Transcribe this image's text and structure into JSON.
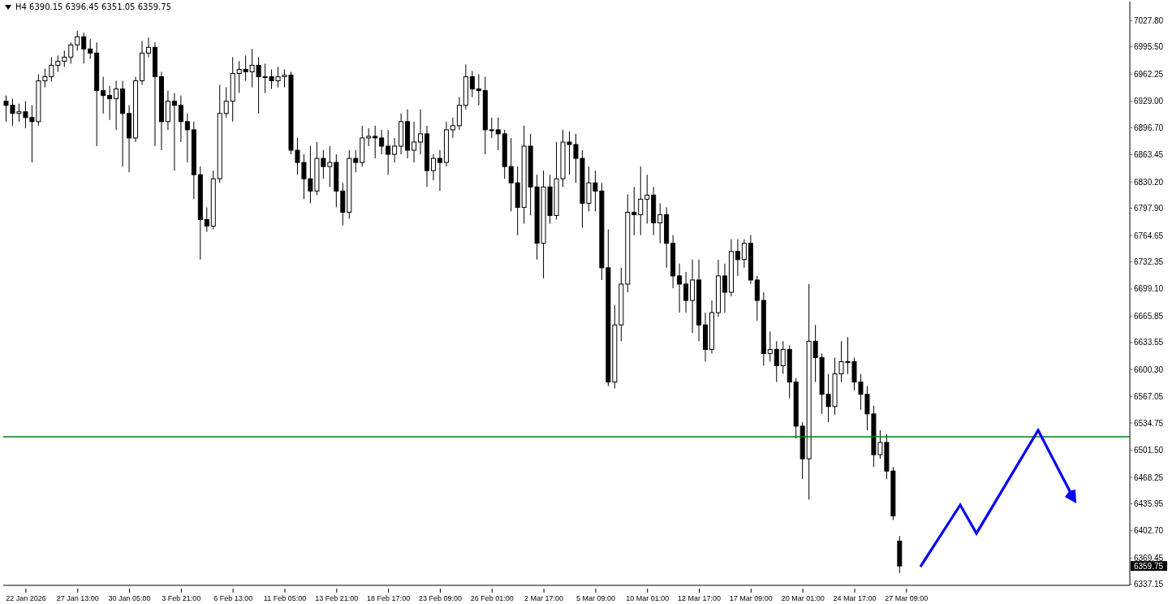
{
  "chart_data": {
    "type": "candlestick",
    "title": "H4 6390.15 6396.45 6351.05 6359.75",
    "color": "#000000",
    "categories": [
      null,
      null,
      null,
      "22 Jan 2026",
      null,
      null,
      null,
      null,
      null,
      null,
      null,
      "27 Jan 13:00",
      null,
      null,
      null,
      null,
      null,
      null,
      null,
      "30 Jan 05:00",
      null,
      null,
      null,
      null,
      null,
      null,
      null,
      "3 Feb 21:00",
      null,
      null,
      null,
      null,
      null,
      null,
      null,
      "6 Feb 13:00",
      null,
      null,
      null,
      null,
      null,
      null,
      null,
      "11 Feb 05:00",
      null,
      null,
      null,
      null,
      null,
      null,
      null,
      "13 Feb 21:00",
      null,
      null,
      null,
      null,
      null,
      null,
      null,
      "18 Feb 17:00",
      null,
      null,
      null,
      null,
      null,
      null,
      null,
      "23 Feb 09:00",
      null,
      null,
      null,
      null,
      null,
      null,
      null,
      "26 Feb 01:00",
      null,
      null,
      null,
      null,
      null,
      null,
      null,
      "2 Mar 17:00",
      null,
      null,
      null,
      null,
      null,
      null,
      null,
      "5 Mar 09:00",
      null,
      null,
      null,
      null,
      null,
      null,
      null,
      "10 Mar 01:00",
      null,
      null,
      null,
      null,
      null,
      null,
      null,
      "12 Mar 17:00",
      null,
      null,
      null,
      null,
      null,
      null,
      null,
      "17 Mar 09:00",
      null,
      null,
      null,
      null,
      null,
      null,
      null,
      "20 Mar 01:00",
      null,
      null,
      null,
      null,
      null,
      null,
      null,
      "24 Mar 17:00",
      null,
      null,
      null,
      null,
      null,
      null,
      null,
      "27 Mar 09:00",
      null,
      null,
      null,
      null,
      null,
      null,
      null,
      null,
      null,
      null,
      null,
      null,
      null,
      null,
      null,
      null,
      null,
      null,
      null,
      null,
      null,
      null,
      null,
      null,
      null,
      null,
      null,
      null,
      null,
      null,
      null,
      null,
      null,
      null
    ],
    "ohlc": [
      [
        6929,
        6936,
        6904,
        6924
      ],
      [
        6924,
        6932,
        6899,
        6914
      ],
      [
        6914,
        6926,
        6904,
        6916
      ],
      [
        6916,
        6929,
        6896,
        6909
      ],
      [
        6909,
        6924,
        6854,
        6904
      ],
      [
        6904,
        6962,
        6899,
        6954
      ],
      [
        6954,
        6969,
        6946,
        6959
      ],
      [
        6959,
        6983,
        6953,
        6973
      ],
      [
        6973,
        6985,
        6965,
        6978
      ],
      [
        6978,
        6991,
        6971,
        6983
      ],
      [
        6983,
        7001,
        6975,
        6998
      ],
      [
        6998,
        7015,
        6991,
        7008
      ],
      [
        7008,
        7013,
        6975,
        6993
      ],
      [
        6993,
        7005,
        6981,
        6988
      ],
      [
        6988,
        7001,
        6874,
        6942
      ],
      [
        6942,
        6959,
        6914,
        6936
      ],
      [
        6936,
        6948,
        6906,
        6932
      ],
      [
        6932,
        6954,
        6894,
        6944
      ],
      [
        6944,
        6954,
        6849,
        6914
      ],
      [
        6914,
        6924,
        6842,
        6884
      ],
      [
        6884,
        6959,
        6879,
        6954
      ],
      [
        6954,
        7003,
        6949,
        6988
      ],
      [
        6988,
        7007,
        6983,
        6995
      ],
      [
        6995,
        7001,
        6874,
        6959
      ],
      [
        6959,
        6965,
        6869,
        6904
      ],
      [
        6904,
        6942,
        6894,
        6929
      ],
      [
        6929,
        6939,
        6844,
        6924
      ],
      [
        6924,
        6936,
        6879,
        6904
      ],
      [
        6904,
        6914,
        6854,
        6894
      ],
      [
        6894,
        6904,
        6809,
        6839
      ],
      [
        6839,
        6849,
        6735,
        6784
      ],
      [
        6784,
        6799,
        6769,
        6776
      ],
      [
        6776,
        6844,
        6772,
        6834
      ],
      [
        6834,
        6949,
        6829,
        6914
      ],
      [
        6914,
        6946,
        6909,
        6929
      ],
      [
        6929,
        6983,
        6904,
        6963
      ],
      [
        6963,
        6978,
        6939,
        6968
      ],
      [
        6968,
        6985,
        6954,
        6965
      ],
      [
        6965,
        6993,
        6946,
        6973
      ],
      [
        6973,
        6983,
        6914,
        6959
      ],
      [
        6959,
        6975,
        6939,
        6959
      ],
      [
        6959,
        6968,
        6944,
        6954
      ],
      [
        6954,
        6971,
        6946,
        6959
      ],
      [
        6959,
        6968,
        6946,
        6961
      ],
      [
        6961,
        6965,
        6864,
        6869
      ],
      [
        6869,
        6884,
        6839,
        6854
      ],
      [
        6854,
        6864,
        6809,
        6834
      ],
      [
        6834,
        6874,
        6804,
        6819
      ],
      [
        6819,
        6879,
        6814,
        6859
      ],
      [
        6859,
        6869,
        6834,
        6849
      ],
      [
        6849,
        6874,
        6824,
        6854
      ],
      [
        6854,
        6864,
        6799,
        6819
      ],
      [
        6819,
        6829,
        6777,
        6793
      ],
      [
        6793,
        6869,
        6785,
        6859
      ],
      [
        6859,
        6869,
        6842,
        6854
      ],
      [
        6854,
        6899,
        6849,
        6884
      ],
      [
        6884,
        6896,
        6874,
        6886
      ],
      [
        6886,
        6899,
        6859,
        6884
      ],
      [
        6884,
        6894,
        6864,
        6874
      ],
      [
        6874,
        6894,
        6839,
        6864
      ],
      [
        6864,
        6884,
        6854,
        6874
      ],
      [
        6874,
        6914,
        6864,
        6904
      ],
      [
        6904,
        6919,
        6859,
        6869
      ],
      [
        6869,
        6904,
        6854,
        6879
      ],
      [
        6879,
        6919,
        6864,
        6889
      ],
      [
        6889,
        6899,
        6824,
        6844
      ],
      [
        6844,
        6864,
        6832,
        6859
      ],
      [
        6859,
        6869,
        6819,
        6854
      ],
      [
        6854,
        6904,
        6849,
        6894
      ],
      [
        6894,
        6909,
        6884,
        6899
      ],
      [
        6899,
        6934,
        6894,
        6924
      ],
      [
        6924,
        6974,
        6919,
        6959
      ],
      [
        6959,
        6966,
        6934,
        6944
      ],
      [
        6944,
        6962,
        6924,
        6942
      ],
      [
        6942,
        6959,
        6864,
        6894
      ],
      [
        6894,
        6909,
        6884,
        6894
      ],
      [
        6894,
        6909,
        6869,
        6889
      ],
      [
        6889,
        6894,
        6834,
        6849
      ],
      [
        6849,
        6884,
        6794,
        6829
      ],
      [
        6829,
        6849,
        6765,
        6799
      ],
      [
        6799,
        6899,
        6779,
        6874
      ],
      [
        6874,
        6889,
        6789,
        6824
      ],
      [
        6824,
        6839,
        6735,
        6755
      ],
      [
        6755,
        6844,
        6712,
        6824
      ],
      [
        6824,
        6839,
        6779,
        6789
      ],
      [
        6789,
        6879,
        6784,
        6834
      ],
      [
        6834,
        6894,
        6824,
        6879
      ],
      [
        6879,
        6892,
        6839,
        6876
      ],
      [
        6876,
        6889,
        6829,
        6859
      ],
      [
        6859,
        6869,
        6774,
        6804
      ],
      [
        6804,
        6849,
        6794,
        6829
      ],
      [
        6829,
        6844,
        6794,
        6819
      ],
      [
        6819,
        6829,
        6710,
        6725
      ],
      [
        6725,
        6772,
        6580,
        6585
      ],
      [
        6585,
        6679,
        6577,
        6655
      ],
      [
        6655,
        6725,
        6635,
        6705
      ],
      [
        6705,
        6815,
        6695,
        6793
      ],
      [
        6793,
        6824,
        6765,
        6790
      ],
      [
        6790,
        6849,
        6765,
        6809
      ],
      [
        6809,
        6839,
        6779,
        6814
      ],
      [
        6814,
        6824,
        6765,
        6780
      ],
      [
        6780,
        6804,
        6755,
        6790
      ],
      [
        6790,
        6799,
        6725,
        6755
      ],
      [
        6755,
        6765,
        6700,
        6715
      ],
      [
        6715,
        6730,
        6670,
        6705
      ],
      [
        6705,
        6720,
        6670,
        6685
      ],
      [
        6685,
        6735,
        6645,
        6710
      ],
      [
        6710,
        6735,
        6635,
        6655
      ],
      [
        6655,
        6670,
        6610,
        6625
      ],
      [
        6625,
        6685,
        6620,
        6670
      ],
      [
        6670,
        6735,
        6665,
        6715
      ],
      [
        6715,
        6730,
        6670,
        6695
      ],
      [
        6695,
        6760,
        6690,
        6745
      ],
      [
        6745,
        6760,
        6715,
        6735
      ],
      [
        6735,
        6760,
        6725,
        6755
      ],
      [
        6755,
        6765,
        6705,
        6710
      ],
      [
        6710,
        6715,
        6660,
        6685
      ],
      [
        6685,
        6695,
        6605,
        6620
      ],
      [
        6620,
        6647,
        6610,
        6625
      ],
      [
        6625,
        6635,
        6585,
        6605
      ],
      [
        6605,
        6635,
        6595,
        6625
      ],
      [
        6625,
        6630,
        6565,
        6585
      ],
      [
        6585,
        6590,
        6516,
        6531
      ],
      [
        6531,
        6536,
        6466,
        6491
      ],
      [
        6491,
        6705,
        6441,
        6635
      ],
      [
        6635,
        6655,
        6585,
        6615
      ],
      [
        6615,
        6620,
        6546,
        6570
      ],
      [
        6570,
        6595,
        6536,
        6555
      ],
      [
        6555,
        6615,
        6545,
        6595
      ],
      [
        6595,
        6635,
        6585,
        6610
      ],
      [
        6610,
        6640,
        6595,
        6610
      ],
      [
        6610,
        6615,
        6575,
        6585
      ],
      [
        6585,
        6595,
        6551,
        6570
      ],
      [
        6570,
        6580,
        6526,
        6546
      ],
      [
        6546,
        6556,
        6481,
        6496
      ],
      [
        6496,
        6526,
        6491,
        6511
      ],
      [
        6511,
        6521,
        6466,
        6476
      ],
      [
        6476,
        6481,
        6416,
        6421
      ],
      [
        6390.15,
        6396.45,
        6351.05,
        6359.75
      ],
      null,
      null,
      null,
      null,
      null,
      null,
      null,
      null,
      null,
      null,
      null,
      null,
      null,
      null,
      null,
      null,
      null,
      null,
      null,
      null,
      null,
      null,
      null,
      null,
      null,
      null,
      null,
      null,
      null,
      null,
      null,
      null,
      null,
      null,
      null
    ],
    "ylim": [
      6336,
      7051
    ],
    "yticks": [
      {
        "value": 6337.15,
        "label": "6337.15"
      },
      {
        "value": 6369.45,
        "label": "6369.45"
      },
      {
        "value": 6402.7,
        "label": "6402.70"
      },
      {
        "value": 6435.95,
        "label": "6435.95"
      },
      {
        "value": 6468.25,
        "label": "6468.25"
      },
      {
        "value": 6501.5,
        "label": "6501.50"
      },
      {
        "value": 6534.75,
        "label": "6534.75"
      },
      {
        "value": 6567.05,
        "label": "6567.05"
      },
      {
        "value": 6600.3,
        "label": "6600.30"
      },
      {
        "value": 6633.55,
        "label": "6633.55"
      },
      {
        "value": 6665.85,
        "label": "6665.85"
      },
      {
        "value": 6699.1,
        "label": "6699.10"
      },
      {
        "value": 6732.35,
        "label": "6732.35"
      },
      {
        "value": 6764.65,
        "label": "6764.65"
      },
      {
        "value": 6797.9,
        "label": "6797.90"
      },
      {
        "value": 6830.2,
        "label": "6830.20"
      },
      {
        "value": 6863.45,
        "label": "6863.45"
      },
      {
        "value": 6896.7,
        "label": "6896.70"
      },
      {
        "value": 6929,
        "label": "6929.00"
      },
      {
        "value": 6962.25,
        "label": "6962.25"
      },
      {
        "value": 6995.5,
        "label": "6995.50"
      },
      {
        "value": 7027.8,
        "label": "7027.80"
      }
    ],
    "ref_lines": [
      {
        "axis": "y",
        "value": 6518,
        "color": "#008000"
      }
    ],
    "annotations": [
      "6359.75"
    ]
  }
}
